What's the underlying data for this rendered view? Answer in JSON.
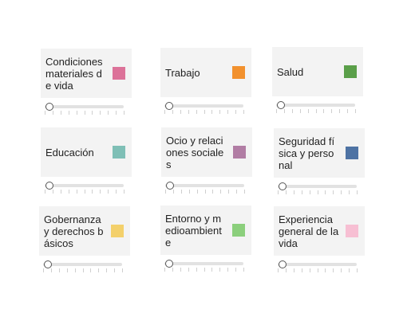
{
  "indicators": [
    {
      "label": "Condiciones materiales de vida",
      "color": "#dc7299",
      "value": 0
    },
    {
      "label": "Trabajo",
      "color": "#f2912e",
      "value": 0
    },
    {
      "label": "Salud",
      "color": "#5a9f49",
      "value": 0
    },
    {
      "label": "Educación",
      "color": "#7fbfb6",
      "value": 0
    },
    {
      "label": "Ocio y relaciones sociales",
      "color": "#b17da4",
      "value": 0
    },
    {
      "label": "Seguridad física y personal",
      "color": "#4e73a4",
      "value": 0
    },
    {
      "label": "Gobernanza y derechos básicos",
      "color": "#f3d06b",
      "value": 0
    },
    {
      "label": "Entorno y medioambiente",
      "color": "#8bcf7c",
      "value": 0
    },
    {
      "label": "Experiencia general de la vida",
      "color": "#f7bfd3",
      "value": 0
    }
  ]
}
